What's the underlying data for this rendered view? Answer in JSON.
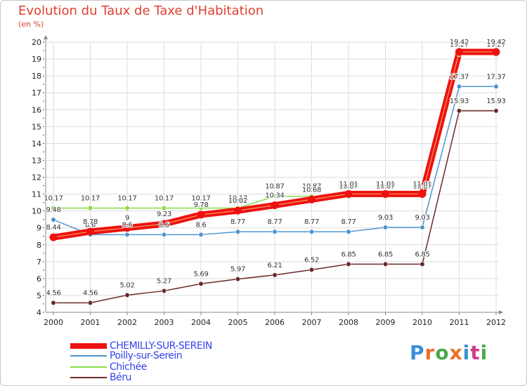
{
  "title": "Evolution du Taux de Taxe d'Habitation",
  "unit_label": "(en %)",
  "logo_text": "Proxiti",
  "chart_data": {
    "type": "line",
    "title": "Evolution du Taux de Taxe d'Habitation",
    "ylabel": "(en %)",
    "xlabel": "",
    "ylim": [
      4,
      20
    ],
    "yticks": [
      4,
      5,
      6,
      7,
      8,
      9,
      10,
      11,
      12,
      13,
      14,
      15,
      16,
      17,
      18,
      19,
      20
    ],
    "x": [
      "2000",
      "2001",
      "2002",
      "2003",
      "2004",
      "2005",
      "2006",
      "2007",
      "2008",
      "2009",
      "2010",
      "2011",
      "2012"
    ],
    "grid": true,
    "series": [
      {
        "name": "CHEMILLY-SUR-SEREIN",
        "color": "#ee1111",
        "values": [
          8.44,
          8.78,
          9,
          9.23,
          9.78,
          10.02,
          10.34,
          10.68,
          11.01,
          11.01,
          11.01,
          19.42,
          19.42
        ],
        "labels": [
          "8.44",
          "8.78",
          "9",
          "9.23",
          "9.78",
          "10.02",
          "10.34",
          "10.68",
          "11.01",
          "11.01",
          "11.01",
          "19.42",
          "19.42"
        ]
      },
      {
        "name": "Poilly-sur-Serein",
        "color": "#4f94cd",
        "values": [
          9.48,
          8.6,
          8.6,
          8.6,
          8.6,
          8.77,
          8.77,
          8.77,
          8.77,
          9.03,
          9.03,
          17.37,
          17.37
        ],
        "labels": [
          "9.48",
          "8.6",
          "8.6",
          "8.6",
          "8.6",
          "8.77",
          "8.77",
          "8.77",
          "8.77",
          "9.03",
          "9.03",
          "17.37",
          "17.37"
        ]
      },
      {
        "name": "Chichée",
        "color": "#88dd44",
        "values": [
          10.17,
          10.17,
          10.17,
          10.17,
          10.17,
          10.17,
          10.87,
          10.87,
          10.87,
          10.87,
          10.87,
          19.27,
          19.27
        ],
        "labels": [
          "10.17",
          "10.17",
          "10.17",
          "10.17",
          "10.17",
          "10.17",
          "10.87",
          "10.87",
          "10.87",
          "10.87",
          "10.87",
          "19.27",
          "19.27"
        ]
      },
      {
        "name": "Béru",
        "color": "#6b2a2a",
        "values": [
          4.56,
          4.56,
          5.02,
          5.27,
          5.69,
          5.97,
          6.21,
          6.52,
          6.85,
          6.85,
          6.85,
          15.93,
          15.93
        ],
        "labels": [
          "4.56",
          "4.56",
          "5.02",
          "5.27",
          "5.69",
          "5.97",
          "6.21",
          "6.52",
          "6.85",
          "6.85",
          "6.85",
          "15.93",
          "15.93"
        ]
      }
    ],
    "legend_position": "bottom-left"
  }
}
